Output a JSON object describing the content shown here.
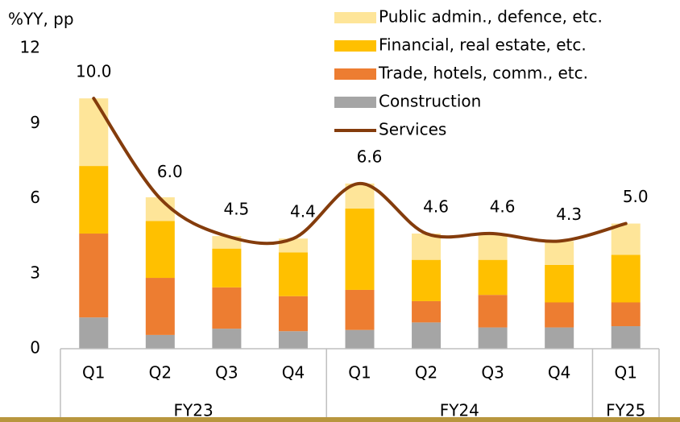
{
  "chart_data": {
    "type": "bar",
    "y_label": "%YY, pp",
    "ylim": [
      0,
      12
    ],
    "yticks": [
      0,
      3,
      6,
      9,
      12
    ],
    "groups": [
      {
        "name": "FY23",
        "categories": [
          "Q1",
          "Q2",
          "Q3",
          "Q4"
        ]
      },
      {
        "name": "FY24",
        "categories": [
          "Q1",
          "Q2",
          "Q3",
          "Q4"
        ]
      },
      {
        "name": "FY25",
        "categories": [
          "Q1"
        ]
      }
    ],
    "series": [
      {
        "name": "Public admin., defence, etc.",
        "type": "bar",
        "color": "#fee599",
        "values": [
          2.7,
          0.95,
          0.5,
          0.55,
          1.0,
          1.05,
          1.05,
          0.95,
          1.25
        ]
      },
      {
        "name": "Financial, real estate, etc.",
        "type": "bar",
        "color": "#ffc000",
        "values": [
          2.7,
          2.27,
          1.55,
          1.75,
          3.25,
          1.65,
          1.4,
          1.5,
          1.9
        ]
      },
      {
        "name": "Trade, hotels, comm., etc.",
        "type": "bar",
        "color": "#ed7d31",
        "values": [
          3.35,
          2.28,
          1.65,
          1.4,
          1.6,
          0.85,
          1.3,
          1.0,
          0.95
        ]
      },
      {
        "name": "Construction",
        "type": "bar",
        "color": "#a5a5a5",
        "values": [
          1.25,
          0.55,
          0.8,
          0.7,
          0.75,
          1.05,
          0.85,
          0.85,
          0.9
        ]
      },
      {
        "name": "Services",
        "type": "line",
        "color": "#843c0c",
        "values": [
          10.0,
          6.0,
          4.5,
          4.4,
          6.6,
          4.6,
          4.6,
          4.3,
          5.0
        ],
        "value_labels": [
          "10.0",
          "6.0",
          "4.5",
          "4.4",
          "6.6",
          "4.6",
          "4.6",
          "4.3",
          "5.0"
        ]
      }
    ]
  }
}
